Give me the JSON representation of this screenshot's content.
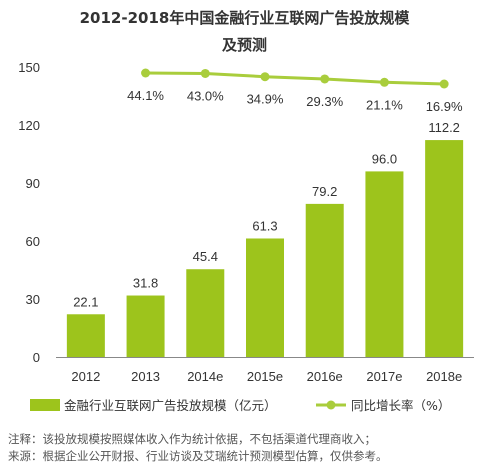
{
  "chart_data": {
    "type": "bar",
    "title_line1": "2012-2018年中国金融行业互联网广告投放规模",
    "title_line2": "及预测",
    "categories": [
      "2012",
      "2013",
      "2014e",
      "2015e",
      "2016e",
      "2017e",
      "2018e"
    ],
    "series": [
      {
        "name": "金融行业互联网广告投放规模（亿元）",
        "type": "bar",
        "values": [
          22.1,
          31.8,
          45.4,
          61.3,
          79.2,
          96.0,
          112.2
        ],
        "value_labels": [
          "22.1",
          "31.8",
          "45.4",
          "61.3",
          "79.2",
          "96.0",
          "112.2"
        ],
        "color": "#9dc41c"
      },
      {
        "name": "同比增长率（%）",
        "type": "line",
        "values": [
          null,
          44.1,
          43.0,
          34.9,
          29.3,
          21.1,
          16.9
        ],
        "value_labels": [
          "",
          "44.1%",
          "43.0%",
          "34.9%",
          "29.3%",
          "21.1%",
          "16.9%"
        ],
        "color": "#a9cd3c"
      }
    ],
    "ylim": [
      0,
      150
    ],
    "yticks": [
      "150",
      "120",
      "90",
      "60",
      "30",
      "0"
    ],
    "grid": false,
    "legend_position": "bottom"
  },
  "notes": {
    "line1": "注释：该投放规模按照媒体收入作为统计依据，不包括渠道代理商收入；",
    "line2": "来源：根据企业公开财报、行业访谈及艾瑞统计预测模型估算，仅供参考。"
  }
}
